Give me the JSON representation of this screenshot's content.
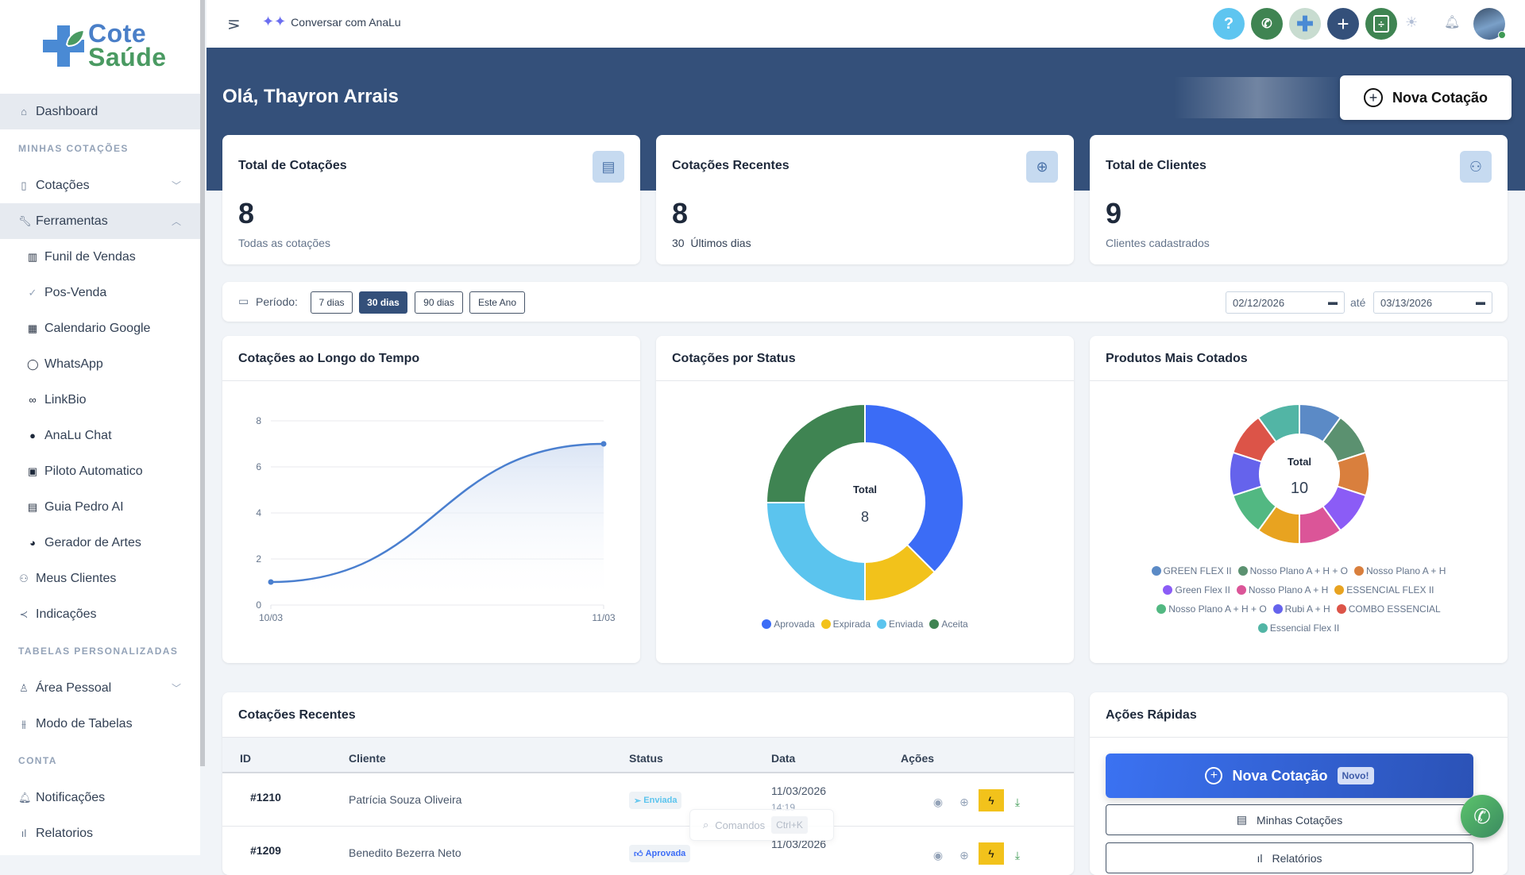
{
  "brand": {
    "line1": "Cote",
    "line2": "Saúde",
    "colors": {
      "blue": "#4a8ad4",
      "green": "#4a9a62"
    }
  },
  "sidebar": {
    "dashboard": "Dashboard",
    "sec1": "MINHAS COTAÇÕES",
    "cotacoes": "Cotações",
    "ferramentas": "Ferramentas",
    "tools": [
      {
        "label": "Funil de Vendas",
        "icon": "kanban-icon"
      },
      {
        "label": "Pos-Venda",
        "icon": "check-circle-icon"
      },
      {
        "label": "Calendario Google",
        "icon": "calendar-icon"
      },
      {
        "label": "WhatsApp",
        "icon": "whatsapp-icon"
      },
      {
        "label": "LinkBio",
        "icon": "link-icon"
      },
      {
        "label": "AnaLu Chat",
        "icon": "chat-icon"
      },
      {
        "label": "Piloto Automatico",
        "icon": "robot-icon"
      },
      {
        "label": "Guia Pedro AI",
        "icon": "book-icon"
      },
      {
        "label": "Gerador de Artes",
        "icon": "palette-icon"
      }
    ],
    "meus_clientes": "Meus Clientes",
    "indicacoes": "Indicações",
    "sec2": "TABELAS PERSONALIZADAS",
    "area_pessoal": "Área Pessoal",
    "modo_tabelas": "Modo de Tabelas",
    "sec3": "CONTA",
    "notificacoes": "Notificações",
    "relatorios": "Relatorios"
  },
  "topbar": {
    "chat_label": "Conversar com AnaLu",
    "help": "?"
  },
  "header": {
    "greeting": "Olá, Thayron Arrais",
    "new_quote": "Nova Cotação"
  },
  "stats": [
    {
      "title": "Total de Cotações",
      "value": "8",
      "sub": "Todas as cotações"
    },
    {
      "title": "Cotações Recentes",
      "value": "8",
      "sub": "30  Últimos dias"
    },
    {
      "title": "Total de Clientes",
      "value": "9",
      "sub": "Clientes cadastrados"
    }
  ],
  "period": {
    "label": "Período:",
    "options": [
      "7 dias",
      "30 dias",
      "90 dias",
      "Este Ano"
    ],
    "selected": "30 dias",
    "from": "02/12/2026",
    "to_label": "até",
    "to": "03/13/2026"
  },
  "chart_data": [
    {
      "type": "area",
      "title": "Cotações ao Longo do Tempo",
      "x": [
        "10/03",
        "11/03"
      ],
      "values": [
        1,
        7
      ],
      "ylim": [
        0,
        8
      ],
      "yticks": [
        0,
        2,
        4,
        6,
        8
      ],
      "grid": true,
      "color": "#4a7fcf"
    },
    {
      "type": "pie",
      "title": "Cotações por Status",
      "center_label": "Total",
      "center_value": "8",
      "legend": "bottom",
      "categories": [
        "Aprovada",
        "Expirada",
        "Enviada",
        "Aceita"
      ],
      "values": [
        3,
        1,
        2,
        2
      ],
      "colors": [
        "#3b6cf6",
        "#f2c21b",
        "#5bc4ee",
        "#3f8452"
      ]
    },
    {
      "type": "pie",
      "title": "Produtos Mais Cotados",
      "center_label": "Total",
      "center_value": "10",
      "legend": "bottom",
      "categories": [
        "GREEN FLEX II",
        "Nosso Plano A + H + O",
        "Nosso Plano A + H",
        "Green Flex II",
        "Nosso Plano A + H",
        "ESSENCIAL FLEX II",
        "Nosso Plano A + H + O",
        "Rubi A + H",
        "COMBO ESSENCIAL",
        "Essencial Flex II"
      ],
      "values": [
        1,
        1,
        1,
        1,
        1,
        1,
        1,
        1,
        1,
        1
      ],
      "colors": [
        "#5b8ac6",
        "#5b9170",
        "#d97f3d",
        "#8b5cf6",
        "#db5598",
        "#e8a320",
        "#52b882",
        "#6563ec",
        "#dc5448",
        "#52b5a5"
      ]
    }
  ],
  "recent": {
    "title": "Cotações Recentes",
    "columns": [
      "ID",
      "Cliente",
      "Status",
      "Data",
      "Ações"
    ],
    "rows": [
      {
        "id": "#1210",
        "client": "Patrícia Souza Oliveira",
        "status": "Enviada",
        "date": "11/03/2026",
        "time": "14:19"
      },
      {
        "id": "#1209",
        "client": "Benedito Bezerra Neto",
        "status": "Aprovada",
        "date": "11/03/2026",
        "time": ""
      }
    ]
  },
  "command": {
    "label": "Comandos",
    "shortcut": "Ctrl+K"
  },
  "quick": {
    "title": "Ações Rápidas",
    "new": "Nova Cotação",
    "new_badge": "Novo!",
    "mine": "Minhas Cotações",
    "reports": "Relatórios"
  }
}
